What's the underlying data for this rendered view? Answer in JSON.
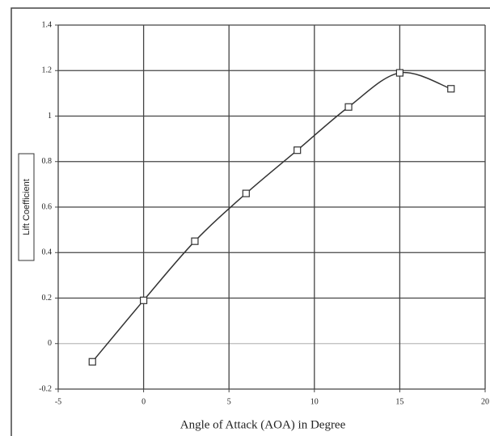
{
  "chart_data": {
    "type": "line",
    "x_label": "Angle of Attack (AOA) in Degree",
    "y_label": "Lift Coefficient",
    "x": [
      -3,
      0,
      3,
      6,
      9,
      12,
      15,
      18
    ],
    "values": [
      -0.08,
      0.19,
      0.45,
      0.66,
      0.85,
      1.04,
      1.19,
      1.12
    ],
    "color": "#333333",
    "marker_fill": "#ffffff",
    "xlim": [
      -5,
      20
    ],
    "xticks": [
      -5,
      0,
      5,
      10,
      15,
      20
    ],
    "ylim": [
      -0.2,
      1.4
    ],
    "yticks": [
      -0.2,
      0,
      0.2,
      0.4,
      0.6,
      0.8,
      1,
      1.2,
      1.4
    ],
    "grid": true
  }
}
